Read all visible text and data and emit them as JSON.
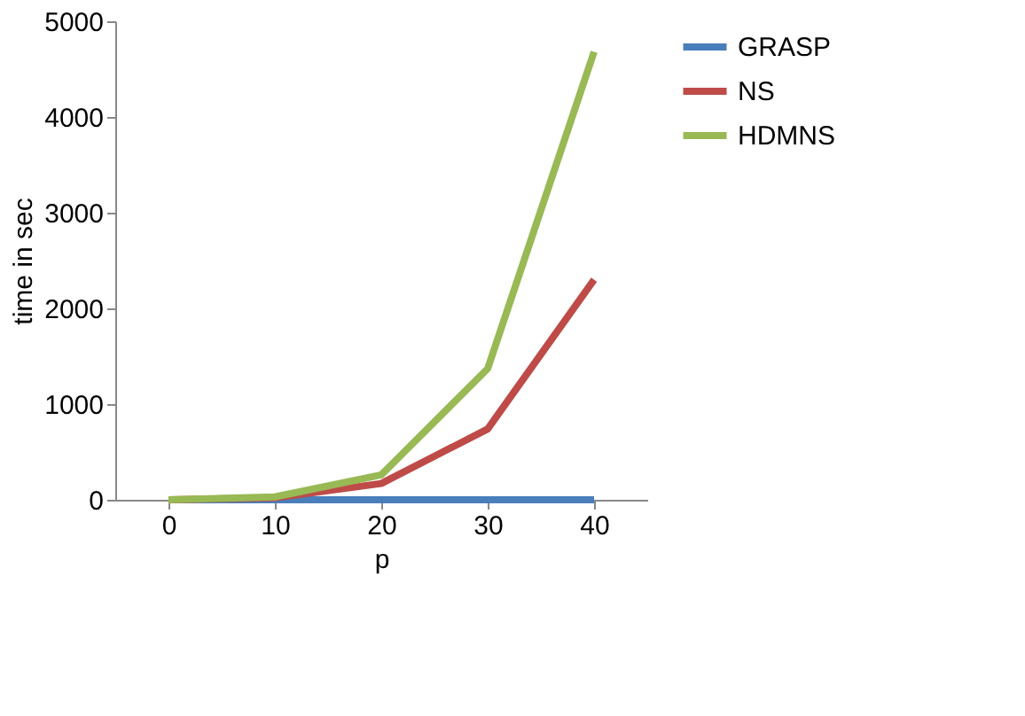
{
  "chart_data": {
    "type": "line",
    "xlabel": "p",
    "ylabel": "time in sec",
    "categories": [
      "0",
      "10",
      "20",
      "30",
      "40"
    ],
    "series": [
      {
        "name": "GRASP",
        "color": "#4a7ebb",
        "values": [
          0,
          0,
          0,
          0,
          0
        ]
      },
      {
        "name": "NS",
        "color": "#be4b48",
        "values": [
          0,
          20,
          170,
          740,
          2300
        ]
      },
      {
        "name": "HDMNS",
        "color": "#98b954",
        "values": [
          0,
          30,
          260,
          1370,
          4680
        ]
      }
    ],
    "ylim": [
      0,
      5000
    ],
    "yticks": [
      0,
      1000,
      2000,
      3000,
      4000,
      5000
    ],
    "grid": false,
    "legend": "right",
    "marker": "none",
    "line_style": "solid"
  }
}
